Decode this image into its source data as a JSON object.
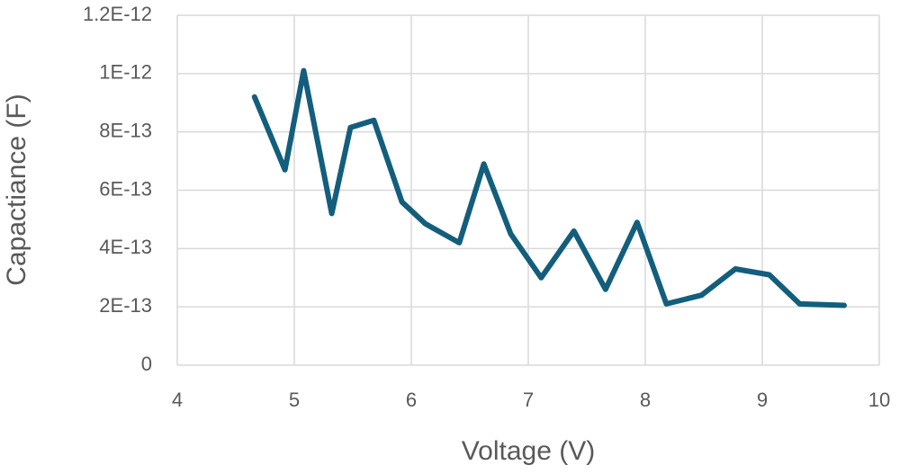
{
  "chart_data": {
    "type": "line",
    "x_label": "Voltage (V)",
    "y_label": "Capactiance  (F)",
    "x": [
      4.66,
      4.92,
      5.08,
      5.32,
      5.48,
      5.68,
      5.92,
      6.12,
      6.41,
      6.62,
      6.85,
      7.11,
      7.39,
      7.66,
      7.93,
      8.18,
      8.48,
      8.77,
      9.06,
      9.32,
      9.7
    ],
    "series": [
      {
        "color": "#135e7c",
        "values": [
          9.2e-13,
          6.7e-13,
          1.01e-12,
          5.2e-13,
          8.15e-13,
          8.4e-13,
          5.6e-13,
          4.85e-13,
          4.2e-13,
          6.9e-13,
          4.5e-13,
          3e-13,
          4.6e-13,
          2.6e-13,
          4.9e-13,
          2.1e-13,
          2.4e-13,
          3.3e-13,
          3.1e-13,
          2.1e-13,
          2.05e-13
        ]
      }
    ],
    "xlim": [
      4,
      10
    ],
    "xticks": [
      4,
      5,
      6,
      7,
      8,
      9,
      10
    ],
    "ylim": [
      0,
      1.2e-12
    ],
    "yticks": [
      0,
      {
        "value": 2e-13,
        "label": "2E-13"
      },
      {
        "value": 4e-13,
        "label": "4E-13"
      },
      {
        "value": 6e-13,
        "label": "6E-13"
      },
      {
        "value": 8e-13,
        "label": "8E-13"
      },
      {
        "value": 1e-12,
        "label": "1E-12"
      },
      {
        "value": 1.2e-12,
        "label": "1.2E-12"
      }
    ],
    "grid": true
  }
}
